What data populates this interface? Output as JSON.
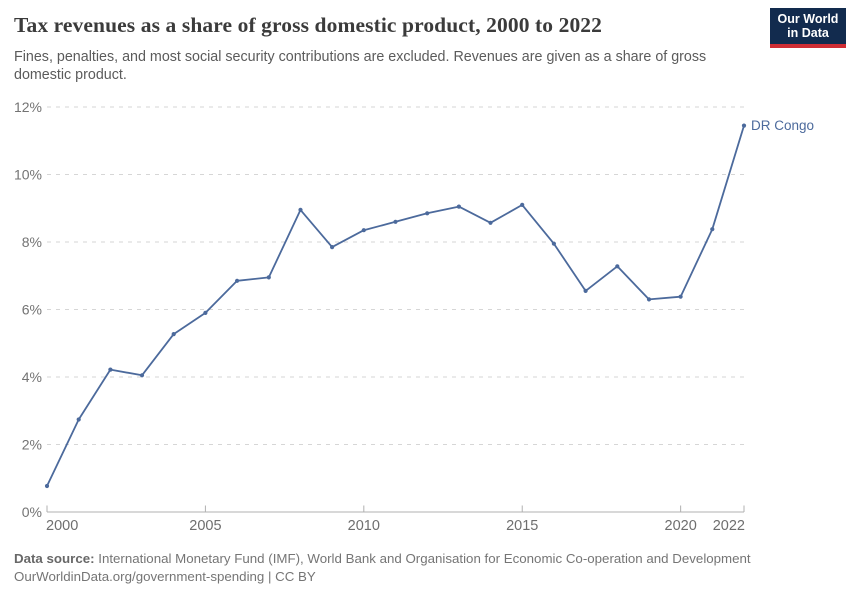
{
  "header": {
    "title": "Tax revenues as a share of gross domestic product, 2000 to 2022",
    "subtitle": "Fines, penalties, and most social security contributions are excluded. Revenues are given as a share of gross domestic product.",
    "logo": {
      "line1": "Our World",
      "line2": "in Data",
      "background_color": "#122b4e",
      "stripe_color": "#cf2d34"
    }
  },
  "chart_data": {
    "type": "line",
    "title": "Tax revenues as a share of gross domestic product, 2000 to 2022",
    "xlabel": "",
    "ylabel": "",
    "x": [
      2000,
      2001,
      2002,
      2003,
      2004,
      2005,
      2006,
      2007,
      2008,
      2009,
      2010,
      2011,
      2012,
      2013,
      2014,
      2015,
      2016,
      2017,
      2018,
      2019,
      2020,
      2021,
      2022
    ],
    "series": [
      {
        "name": "DR Congo",
        "color": "#4C6A9C",
        "values": [
          0.77,
          2.74,
          4.22,
          4.05,
          5.27,
          5.9,
          6.85,
          6.95,
          8.95,
          7.85,
          8.35,
          8.6,
          8.85,
          9.05,
          8.57,
          9.1,
          7.95,
          6.55,
          7.28,
          6.3,
          6.38,
          8.38,
          11.45
        ]
      }
    ],
    "ylim": [
      0,
      12
    ],
    "yticks": [
      0,
      2,
      4,
      6,
      8,
      10,
      12
    ],
    "ytick_suffix": "%",
    "xticks": [
      2000,
      2005,
      2010,
      2015,
      2020,
      2022
    ],
    "grid": {
      "horizontal": true,
      "style": "dashed",
      "color": "#d6d6d6"
    },
    "axis_color": "#b0b0b0",
    "xtick_label_color": "#6e6e6e",
    "ytick_label_color": "#737373",
    "legend": {
      "position": "end-of-line",
      "label": "DR Congo"
    }
  },
  "footer": {
    "source_label": "Data source:",
    "source_text": " International Monetary Fund (IMF), World Bank and Organisation for Economic Co-operation and Development",
    "url": "OurWorldinData.org/government-spending",
    "separator": " | ",
    "license": "CC BY"
  }
}
